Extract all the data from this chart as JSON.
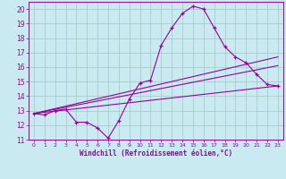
{
  "xlabel": "Windchill (Refroidissement éolien,°C)",
  "background_color": "#c8eaf0",
  "line_color": "#990099",
  "grid_color": "#aacccc",
  "xlim": [
    -0.5,
    23.5
  ],
  "ylim": [
    11,
    20.5
  ],
  "xticks": [
    0,
    1,
    2,
    3,
    4,
    5,
    6,
    7,
    8,
    9,
    10,
    11,
    12,
    13,
    14,
    15,
    16,
    17,
    18,
    19,
    20,
    21,
    22,
    23
  ],
  "yticks": [
    11,
    12,
    13,
    14,
    15,
    16,
    17,
    18,
    19,
    20
  ],
  "main_x": [
    0,
    1,
    2,
    3,
    4,
    5,
    6,
    7,
    8,
    9,
    10,
    11,
    12,
    13,
    14,
    15,
    16,
    17,
    18,
    19,
    20,
    21,
    22,
    23
  ],
  "main_y": [
    12.8,
    12.7,
    13.0,
    13.1,
    12.2,
    12.2,
    11.8,
    11.1,
    12.3,
    13.8,
    14.9,
    15.1,
    17.5,
    18.7,
    19.7,
    20.2,
    20.0,
    18.7,
    17.4,
    16.7,
    16.3,
    15.5,
    14.8,
    14.7
  ],
  "line1_x": [
    0,
    23
  ],
  "line1_y": [
    12.8,
    14.7
  ],
  "line2_x": [
    0,
    23
  ],
  "line2_y": [
    12.8,
    16.1
  ],
  "line3_x": [
    0,
    23
  ],
  "line3_y": [
    12.8,
    16.7
  ]
}
